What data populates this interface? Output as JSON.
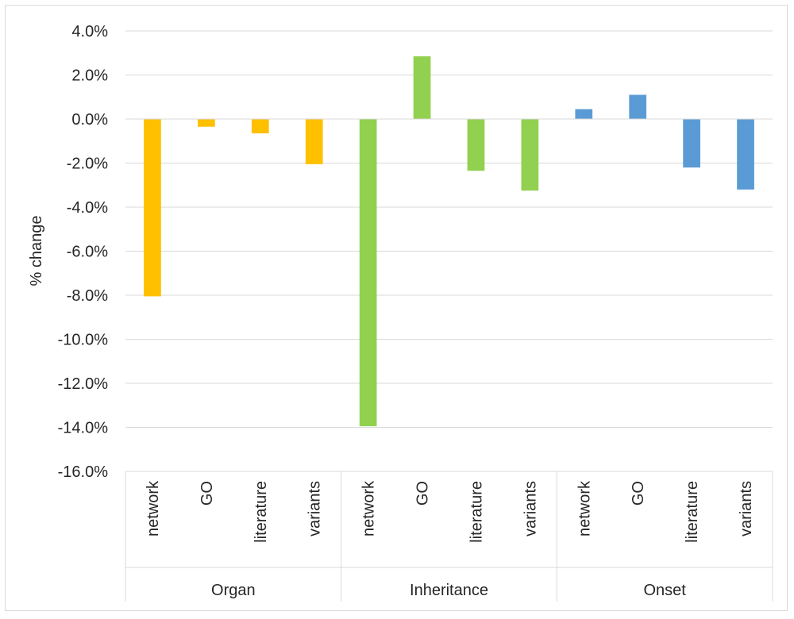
{
  "chart_data": {
    "type": "bar",
    "title": "",
    "xlabel": "",
    "ylabel": "% change",
    "ylim": [
      -16,
      4
    ],
    "yticks": [
      "4.0%",
      "2.0%",
      "0.0%",
      "-2.0%",
      "-4.0%",
      "-6.0%",
      "-8.0%",
      "-10.0%",
      "-12.0%",
      "-14.0%",
      "-16.0%"
    ],
    "ytick_values": [
      4,
      2,
      0,
      -2,
      -4,
      -6,
      -8,
      -10,
      -12,
      -14,
      -16
    ],
    "grid": true,
    "groups": [
      {
        "name": "Organ",
        "color": "#FFC000",
        "categories": [
          "network",
          "GO",
          "literature",
          "variants"
        ],
        "values": [
          -8.05,
          -0.35,
          -0.65,
          -2.05
        ]
      },
      {
        "name": "Inheritance",
        "color": "#92D050",
        "categories": [
          "network",
          "GO",
          "literature",
          "variants"
        ],
        "values": [
          -13.95,
          2.85,
          -2.35,
          -3.25
        ]
      },
      {
        "name": "Onset",
        "color": "#5B9BD5",
        "categories": [
          "network",
          "GO",
          "literature",
          "variants"
        ],
        "values": [
          0.45,
          1.1,
          -2.2,
          -3.2
        ]
      }
    ]
  }
}
